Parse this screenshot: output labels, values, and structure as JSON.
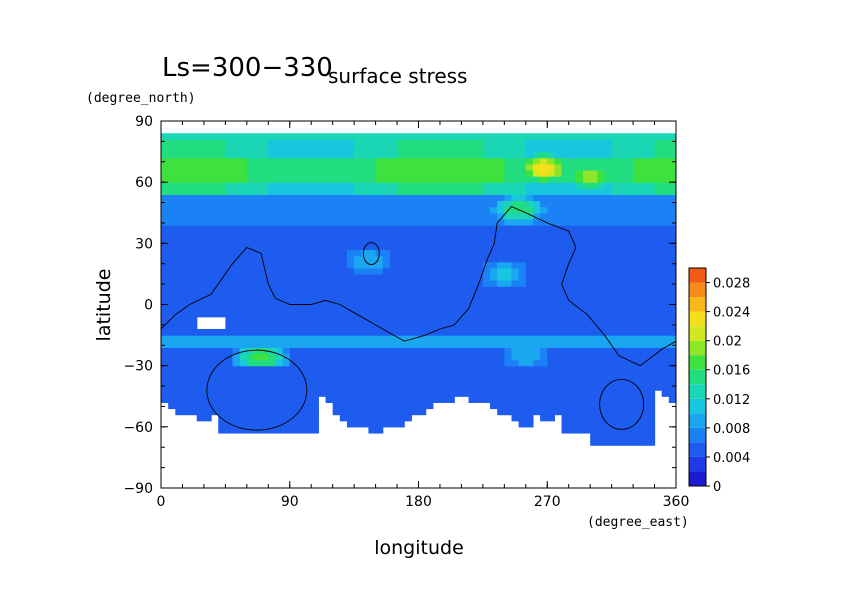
{
  "chart_data": {
    "type": "heatmap",
    "title_main": "Ls=300−330",
    "title_sub": "surface stress",
    "xlabel": "longitude",
    "ylabel": "latitude",
    "xunit": "(degree_east)",
    "yunit": "(degree_north)",
    "xlim": [
      0,
      360
    ],
    "ylim": [
      -90,
      90
    ],
    "xticks": [
      0,
      90,
      180,
      270,
      360
    ],
    "yticks": [
      -90,
      -60,
      -30,
      0,
      30,
      60,
      90
    ],
    "colorbar": {
      "min": 0,
      "max": 0.03,
      "ticks": [
        0,
        0.004,
        0.008,
        0.012,
        0.016,
        0.02,
        0.024,
        0.028
      ],
      "tick_labels": [
        "0",
        "0.004",
        "0.008",
        "0.012",
        "0.016",
        "0.02",
        "0.024",
        "0.028"
      ],
      "levels": [
        {
          "value": 0.0,
          "color": "#1a1ad0"
        },
        {
          "value": 0.002,
          "color": "#1f3be6"
        },
        {
          "value": 0.004,
          "color": "#1e5cf0"
        },
        {
          "value": 0.006,
          "color": "#1b82f5"
        },
        {
          "value": 0.008,
          "color": "#1aa6f0"
        },
        {
          "value": 0.01,
          "color": "#19c6e0"
        },
        {
          "value": 0.012,
          "color": "#1ad6b4"
        },
        {
          "value": 0.014,
          "color": "#22dc80"
        },
        {
          "value": 0.016,
          "color": "#3ee23e"
        },
        {
          "value": 0.018,
          "color": "#8ee628"
        },
        {
          "value": 0.02,
          "color": "#d2e81e"
        },
        {
          "value": 0.022,
          "color": "#f5de1c"
        },
        {
          "value": 0.024,
          "color": "#f8b81c"
        },
        {
          "value": 0.026,
          "color": "#f68a1a"
        },
        {
          "value": 0.028,
          "color": "#f25a18"
        },
        {
          "value": 0.03,
          "color": "#e42a16"
        }
      ]
    },
    "field": {
      "background": 0.004,
      "lat_bands": [
        {
          "lat_min": 55,
          "lat_max": 85,
          "value": 0.013
        },
        {
          "lat_min": 60,
          "lat_max": 72,
          "value": 0.016
        },
        {
          "lat_min": 40,
          "lat_max": 55,
          "value": 0.007
        },
        {
          "lat_min": 0,
          "lat_max": 40,
          "value": 0.004
        },
        {
          "lat_min": -30,
          "lat_max": 0,
          "value": 0.004
        },
        {
          "lat_min": -22,
          "lat_max": -15,
          "value": 0.008
        }
      ],
      "hotspots": [
        {
          "lon": 268,
          "lat": 67,
          "value": 0.024
        },
        {
          "lon": 300,
          "lat": 63,
          "value": 0.02
        },
        {
          "lon": 250,
          "lat": 47,
          "value": 0.016
        },
        {
          "lon": 70,
          "lat": -26,
          "value": 0.017
        },
        {
          "lon": 145,
          "lat": 22,
          "value": 0.01
        },
        {
          "lon": 240,
          "lat": 15,
          "value": 0.011
        },
        {
          "lon": 255,
          "lat": -25,
          "value": 0.01
        }
      ],
      "missing_regions": [
        {
          "name": "south-polar",
          "lat_max": -45
        },
        {
          "name": "patch-west",
          "lon": 35,
          "lat": -10
        }
      ]
    },
    "contours": [
      {
        "name": "dichotomy-boundary"
      },
      {
        "name": "hellas-basin",
        "lon": 67,
        "lat": -42
      },
      {
        "name": "argyre-basin",
        "lon": 322,
        "lat": -49
      },
      {
        "name": "elysium-ring",
        "lon": 147,
        "lat": 25
      }
    ]
  }
}
